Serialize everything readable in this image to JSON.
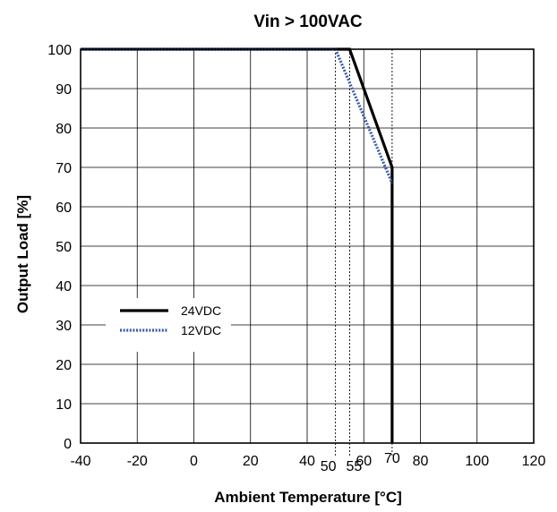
{
  "chart_data": {
    "type": "line",
    "title": "Vin > 100VAC",
    "xlabel": "Ambient Temperature [°C]",
    "ylabel": "Output Load [%]",
    "xlim": [
      -40,
      120
    ],
    "ylim": [
      0,
      100
    ],
    "x_ticks": [
      -40,
      -20,
      0,
      20,
      40,
      60,
      80,
      100,
      120
    ],
    "y_ticks": [
      0,
      10,
      20,
      30,
      40,
      50,
      60,
      70,
      80,
      90,
      100
    ],
    "grid": true,
    "legend_position": "lower-left",
    "series": [
      {
        "name": "24VDC",
        "color": "#000000",
        "style": "solid",
        "x": [
          -40,
          55,
          70,
          70
        ],
        "y": [
          100,
          100,
          70,
          0
        ]
      },
      {
        "name": "12VDC",
        "color": "#3a5da8",
        "style": "dotted",
        "x": [
          -40,
          50,
          70
        ],
        "y": [
          100,
          100,
          66
        ]
      }
    ],
    "annotations": [
      {
        "label": "50",
        "x": 50
      },
      {
        "label": "55",
        "x": 55
      },
      {
        "label": "70",
        "x": 70
      }
    ]
  }
}
